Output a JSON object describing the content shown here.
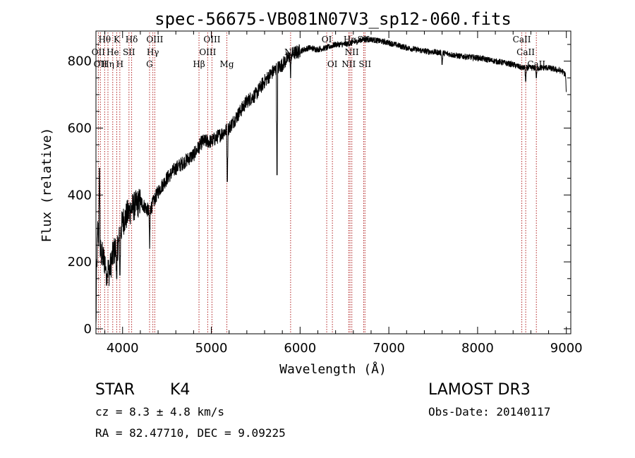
{
  "chart_data": {
    "type": "line",
    "title": "spec-56675-VB081N07V3_sp12-060.fits",
    "xlabel": "Wavelength (Å)",
    "ylabel": "Flux (relative)",
    "xlim": [
      3700,
      9050
    ],
    "ylim": [
      -15,
      890
    ],
    "x_ticks": [
      4000,
      5000,
      6000,
      7000,
      8000,
      9000
    ],
    "y_ticks": [
      0,
      200,
      400,
      600,
      800
    ],
    "series": [
      {
        "name": "flux",
        "continuum": [
          [
            3700,
            0
          ],
          [
            3706,
            150
          ],
          [
            3720,
            300
          ],
          [
            3750,
            230
          ],
          [
            3800,
            200
          ],
          [
            3850,
            170
          ],
          [
            3900,
            230
          ],
          [
            3950,
            250
          ],
          [
            4000,
            320
          ],
          [
            4100,
            360
          ],
          [
            4200,
            380
          ],
          [
            4300,
            350
          ],
          [
            4400,
            410
          ],
          [
            4500,
            450
          ],
          [
            4600,
            480
          ],
          [
            4700,
            500
          ],
          [
            4800,
            520
          ],
          [
            4900,
            560
          ],
          [
            5000,
            560
          ],
          [
            5100,
            580
          ],
          [
            5200,
            600
          ],
          [
            5300,
            640
          ],
          [
            5400,
            680
          ],
          [
            5500,
            700
          ],
          [
            5600,
            740
          ],
          [
            5700,
            770
          ],
          [
            5800,
            790
          ],
          [
            5900,
            820
          ],
          [
            6000,
            830
          ],
          [
            6100,
            840
          ],
          [
            6200,
            835
          ],
          [
            6300,
            840
          ],
          [
            6400,
            850
          ],
          [
            6500,
            850
          ],
          [
            6600,
            855
          ],
          [
            6700,
            865
          ],
          [
            6800,
            865
          ],
          [
            6900,
            860
          ],
          [
            7000,
            855
          ],
          [
            7200,
            840
          ],
          [
            7400,
            830
          ],
          [
            7600,
            825
          ],
          [
            7800,
            815
          ],
          [
            8000,
            810
          ],
          [
            8200,
            800
          ],
          [
            8400,
            790
          ],
          [
            8500,
            780
          ],
          [
            8600,
            780
          ],
          [
            8800,
            780
          ],
          [
            8950,
            770
          ],
          [
            8990,
            760
          ],
          [
            9000,
            700
          ]
        ],
        "features": [
          {
            "x": 3740,
            "v": 480
          },
          {
            "x": 3820,
            "v": 130
          },
          {
            "x": 3934,
            "v": 150
          },
          {
            "x": 3970,
            "v": 160
          },
          {
            "x": 4305,
            "v": 240
          },
          {
            "x": 5180,
            "v": 440
          },
          {
            "x": 5740,
            "v": 460
          },
          {
            "x": 5893,
            "v": 750
          },
          {
            "x": 7600,
            "v": 790
          },
          {
            "x": 8542,
            "v": 740
          },
          {
            "x": 8662,
            "v": 750
          }
        ]
      }
    ],
    "spectral_lines": [
      {
        "x": 3727,
        "label": "OII",
        "row": 2
      },
      {
        "x": 3750,
        "label": "OII",
        "row": 3
      },
      {
        "x": 3798,
        "label": "Hθ",
        "row": 1
      },
      {
        "x": 3835,
        "label": "Hη",
        "row": 3
      },
      {
        "x": 3889,
        "label": "He",
        "row": 2
      },
      {
        "x": 3934,
        "label": "K",
        "row": 1
      },
      {
        "x": 3969,
        "label": "H",
        "row": 3
      },
      {
        "x": 4072,
        "label": "SII",
        "row": 2
      },
      {
        "x": 4102,
        "label": "Hδ",
        "row": 1
      },
      {
        "x": 4304,
        "label": "G",
        "row": 3
      },
      {
        "x": 4341,
        "label": "Hγ",
        "row": 2
      },
      {
        "x": 4363,
        "label": "OIII",
        "row": 1
      },
      {
        "x": 4861,
        "label": "Hβ",
        "row": 3
      },
      {
        "x": 4959,
        "label": "OIII",
        "row": 2
      },
      {
        "x": 5007,
        "label": "OIII",
        "row": 1
      },
      {
        "x": 5175,
        "label": "Mg",
        "row": 3
      },
      {
        "x": 5893,
        "label": "Na",
        "row": 2
      },
      {
        "x": 6300,
        "label": "OI",
        "row": 1
      },
      {
        "x": 6364,
        "label": "OI",
        "row": 4
      },
      {
        "x": 6548,
        "label": "NII",
        "row": 4
      },
      {
        "x": 6563,
        "label": "Hα",
        "row": 1
      },
      {
        "x": 6583,
        "label": "NII",
        "row": 2
      },
      {
        "x": 6716,
        "label": "SII",
        "row": 1
      },
      {
        "x": 6731,
        "label": "SII",
        "row": 3
      },
      {
        "x": 8498,
        "label": "CaII",
        "row": 1
      },
      {
        "x": 8542,
        "label": "CaII",
        "row": 2
      },
      {
        "x": 8662,
        "label": "CaII",
        "row": 3
      }
    ]
  },
  "info": {
    "class": "STAR",
    "subclass": "K4",
    "cz": "cz = 8.3 ± 4.8 km/s",
    "radec": "RA =  82.47710, DEC =   9.09225",
    "survey": "LAMOST DR3",
    "obsdate": "Obs-Date: 20140117"
  },
  "colors": {
    "spectrum": "#000000",
    "line_marker": "#b22222",
    "axes": "#000000",
    "background": "#ffffff"
  }
}
